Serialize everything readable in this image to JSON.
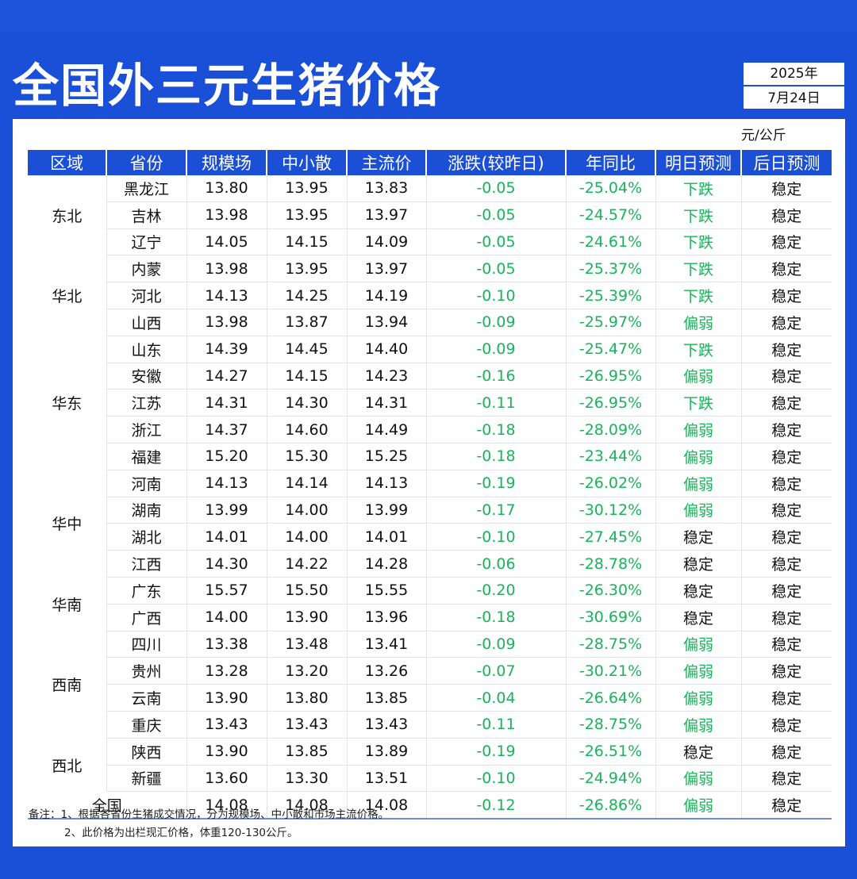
{
  "header": {
    "title": "全国外三元生猪价格",
    "date_year": "2025年",
    "date_day": "7月24日"
  },
  "unit": "元/公斤",
  "columns": [
    "区域",
    "省份",
    "规模场",
    "中小散",
    "主流价",
    "涨跌(较昨日)",
    "年同比",
    "明日预测",
    "后日预测"
  ],
  "regions": [
    {
      "name": "东北",
      "rows": 3
    },
    {
      "name": "华北",
      "rows": 3
    },
    {
      "name": "华东",
      "rows": 5
    },
    {
      "name": "华中",
      "rows": 4
    },
    {
      "name": "华南",
      "rows": 2
    },
    {
      "name": "西南",
      "rows": 4
    },
    {
      "name": "西北",
      "rows": 2
    }
  ],
  "rows": [
    [
      "黑龙江",
      "13.80",
      "13.95",
      "13.83",
      "-0.05",
      "-25.04%",
      "下跌",
      "稳定"
    ],
    [
      "吉林",
      "13.98",
      "13.95",
      "13.97",
      "-0.05",
      "-24.57%",
      "下跌",
      "稳定"
    ],
    [
      "辽宁",
      "14.05",
      "14.15",
      "14.09",
      "-0.05",
      "-24.61%",
      "下跌",
      "稳定"
    ],
    [
      "内蒙",
      "13.98",
      "13.95",
      "13.97",
      "-0.05",
      "-25.37%",
      "下跌",
      "稳定"
    ],
    [
      "河北",
      "14.13",
      "14.25",
      "14.19",
      "-0.10",
      "-25.39%",
      "下跌",
      "稳定"
    ],
    [
      "山西",
      "13.98",
      "13.87",
      "13.94",
      "-0.09",
      "-25.97%",
      "偏弱",
      "稳定"
    ],
    [
      "山东",
      "14.39",
      "14.45",
      "14.40",
      "-0.09",
      "-25.47%",
      "下跌",
      "稳定"
    ],
    [
      "安徽",
      "14.27",
      "14.15",
      "14.23",
      "-0.16",
      "-26.95%",
      "偏弱",
      "稳定"
    ],
    [
      "江苏",
      "14.31",
      "14.30",
      "14.31",
      "-0.11",
      "-26.95%",
      "下跌",
      "稳定"
    ],
    [
      "浙江",
      "14.37",
      "14.60",
      "14.49",
      "-0.18",
      "-28.09%",
      "偏弱",
      "稳定"
    ],
    [
      "福建",
      "15.20",
      "15.30",
      "15.25",
      "-0.18",
      "-23.44%",
      "偏弱",
      "稳定"
    ],
    [
      "河南",
      "14.13",
      "14.14",
      "14.13",
      "-0.19",
      "-26.02%",
      "偏弱",
      "稳定"
    ],
    [
      "湖南",
      "13.99",
      "14.00",
      "13.99",
      "-0.17",
      "-30.12%",
      "偏弱",
      "稳定"
    ],
    [
      "湖北",
      "14.01",
      "14.00",
      "14.01",
      "-0.10",
      "-27.45%",
      "稳定",
      "稳定"
    ],
    [
      "江西",
      "14.30",
      "14.22",
      "14.28",
      "-0.06",
      "-28.78%",
      "稳定",
      "稳定"
    ],
    [
      "广东",
      "15.57",
      "15.50",
      "15.55",
      "-0.20",
      "-26.30%",
      "稳定",
      "稳定"
    ],
    [
      "广西",
      "14.00",
      "13.90",
      "13.96",
      "-0.18",
      "-30.69%",
      "稳定",
      "稳定"
    ],
    [
      "四川",
      "13.38",
      "13.48",
      "13.41",
      "-0.09",
      "-28.75%",
      "偏弱",
      "稳定"
    ],
    [
      "贵州",
      "13.28",
      "13.20",
      "13.26",
      "-0.07",
      "-30.21%",
      "偏弱",
      "稳定"
    ],
    [
      "云南",
      "13.90",
      "13.80",
      "13.85",
      "-0.04",
      "-26.64%",
      "偏弱",
      "稳定"
    ],
    [
      "重庆",
      "13.43",
      "13.43",
      "13.43",
      "-0.11",
      "-28.75%",
      "偏弱",
      "稳定"
    ],
    [
      "陕西",
      "13.90",
      "13.85",
      "13.89",
      "-0.19",
      "-26.51%",
      "稳定",
      "稳定"
    ],
    [
      "新疆",
      "13.60",
      "13.30",
      "13.51",
      "-0.10",
      "-24.94%",
      "偏弱",
      "稳定"
    ]
  ],
  "total": [
    "全国",
    "14.08",
    "14.08",
    "14.08",
    "-0.12",
    "-26.86%",
    "偏弱",
    "稳定"
  ],
  "notes": [
    "备注：1、根据各省份生猪成交情况，分为规模场、中小散和市场主流价格。",
    "2、此价格为出栏现汇价格，体重120-130公斤。"
  ],
  "colors": {
    "brand_blue": "#1b4fd6",
    "change_green": "#19b45a"
  }
}
